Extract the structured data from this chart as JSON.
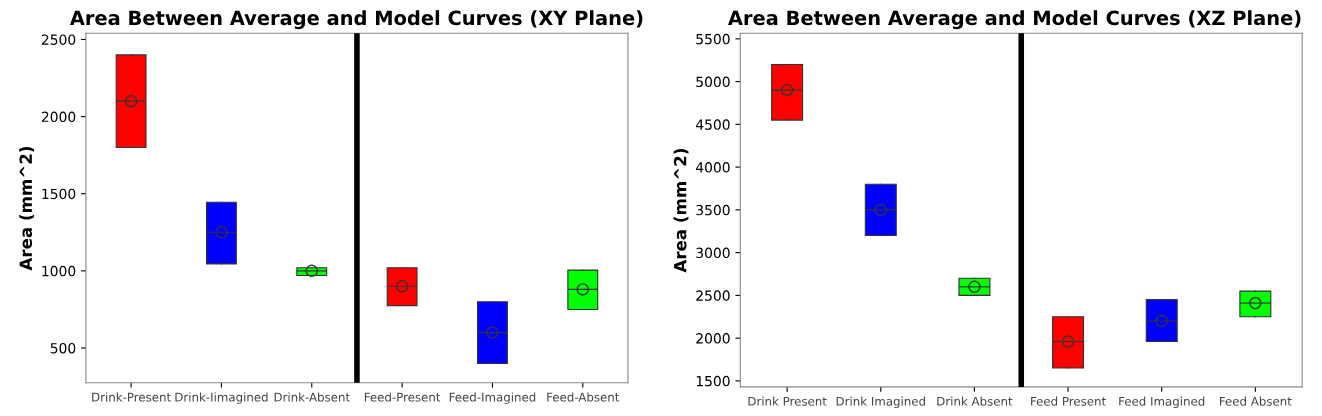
{
  "chart_data": [
    {
      "type": "box",
      "title": "Area Between Average and Model Curves (XY Plane)",
      "ylabel": "Area (mm^2)",
      "categories": [
        "Drink-Present",
        "Drink-Iimagined",
        "Drink-Absent",
        "Feed-Present",
        "Feed-Imagined",
        "Feed-Absent"
      ],
      "colors": [
        "#ff0000",
        "#0000ff",
        "#00ff00",
        "#ff0000",
        "#0000ff",
        "#00ff00"
      ],
      "boxes": [
        {
          "low": 1800,
          "q1": 1800,
          "median": 2100,
          "q3": 2400,
          "high": 2400,
          "mean": 2100
        },
        {
          "low": 1045,
          "q1": 1045,
          "median": 1250,
          "q3": 1445,
          "high": 1445,
          "mean": 1250
        },
        {
          "low": 970,
          "q1": 970,
          "median": 1000,
          "q3": 1020,
          "high": 1020,
          "mean": 1000
        },
        {
          "low": 775,
          "q1": 775,
          "median": 900,
          "q3": 1020,
          "high": 1020,
          "mean": 900
        },
        {
          "low": 400,
          "q1": 400,
          "median": 600,
          "q3": 800,
          "high": 800,
          "mean": 600
        },
        {
          "low": 750,
          "q1": 750,
          "median": 880,
          "q3": 1005,
          "high": 1005,
          "mean": 880
        }
      ],
      "ylim": [
        275,
        2540
      ],
      "yticks": [
        500,
        1000,
        1500,
        2000,
        2500
      ],
      "marker": "circle",
      "grid": false,
      "legend": false
    },
    {
      "type": "box",
      "title": "Area Between Average and Model Curves (XZ Plane)",
      "ylabel": "Area (mm^2)",
      "categories": [
        "Drink Present",
        "Drink Imagined",
        "Drink Absent",
        "Feed Present",
        "Feed Imagined",
        "Feed Absent"
      ],
      "colors": [
        "#ff0000",
        "#0000ff",
        "#00ff00",
        "#ff0000",
        "#0000ff",
        "#00ff00"
      ],
      "boxes": [
        {
          "low": 4550,
          "q1": 4550,
          "median": 4900,
          "q3": 5200,
          "high": 5200,
          "mean": 4900
        },
        {
          "low": 3200,
          "q1": 3200,
          "median": 3500,
          "q3": 3800,
          "high": 3800,
          "mean": 3500
        },
        {
          "low": 2500,
          "q1": 2500,
          "median": 2600,
          "q3": 2700,
          "high": 2700,
          "mean": 2600
        },
        {
          "low": 1650,
          "q1": 1650,
          "median": 1960,
          "q3": 2250,
          "high": 2250,
          "mean": 1960
        },
        {
          "low": 1960,
          "q1": 1960,
          "median": 2200,
          "q3": 2450,
          "high": 2450,
          "mean": 2200
        },
        {
          "low": 2250,
          "q1": 2250,
          "median": 2410,
          "q3": 2550,
          "high": 2550,
          "mean": 2410
        }
      ],
      "ylim": [
        1430,
        5565
      ],
      "yticks": [
        1500,
        2000,
        2500,
        3000,
        3500,
        4000,
        4500,
        5000,
        5500
      ],
      "marker": "circle",
      "grid": false,
      "legend": false
    }
  ]
}
